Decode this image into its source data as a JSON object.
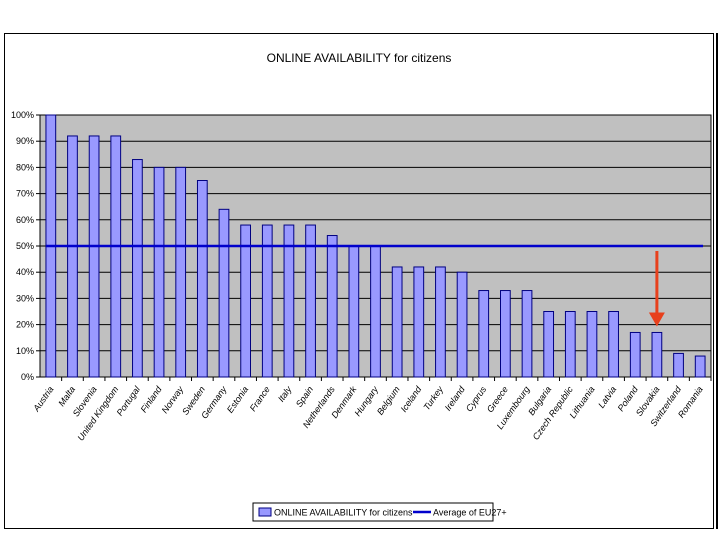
{
  "colors": {
    "plot_bg": "#c0c0c0",
    "bar_fill": "#9999ff",
    "bar_stroke": "#000080",
    "avg_line": "#0000cc",
    "arrow": "#e8401c",
    "grid": "#000000"
  },
  "chart_data": {
    "type": "bar",
    "title": "ONLINE AVAILABILITY for citizens",
    "xlabel": "",
    "ylabel": "",
    "ylim": [
      0,
      100
    ],
    "yticks": [
      "0%",
      "10%",
      "20%",
      "30%",
      "40%",
      "50%",
      "60%",
      "70%",
      "80%",
      "90%",
      "100%"
    ],
    "grid": true,
    "legend_position": "bottom",
    "categories": [
      "Austria",
      "Malta",
      "Slovenia",
      "United Kingdom",
      "Portugal",
      "Finland",
      "Norway",
      "Sweden",
      "Germany",
      "Estonia",
      "France",
      "Italy",
      "Spain",
      "Netherlands",
      "Denmark",
      "Hungary",
      "Belgium",
      "Iceland",
      "Turkey",
      "Ireland",
      "Cyprus",
      "Greece",
      "Luxembourg",
      "Bulgaria",
      "Czech Republic",
      "Lithuania",
      "Latvia",
      "Poland",
      "Slovakia",
      "Switzerland",
      "Romania"
    ],
    "series": [
      {
        "name": "ONLINE AVAILABILITY for citizens",
        "type": "bar",
        "values": [
          100,
          92,
          92,
          92,
          83,
          80,
          80,
          75,
          64,
          58,
          58,
          58,
          58,
          54,
          50,
          50,
          42,
          42,
          42,
          40,
          33,
          33,
          33,
          25,
          25,
          25,
          25,
          17,
          17,
          9,
          8
        ]
      },
      {
        "name": "Average of EU27+",
        "type": "line",
        "value": 50
      }
    ],
    "annotations": [
      {
        "type": "arrow",
        "direction": "down",
        "target": "Slovakia"
      }
    ]
  }
}
